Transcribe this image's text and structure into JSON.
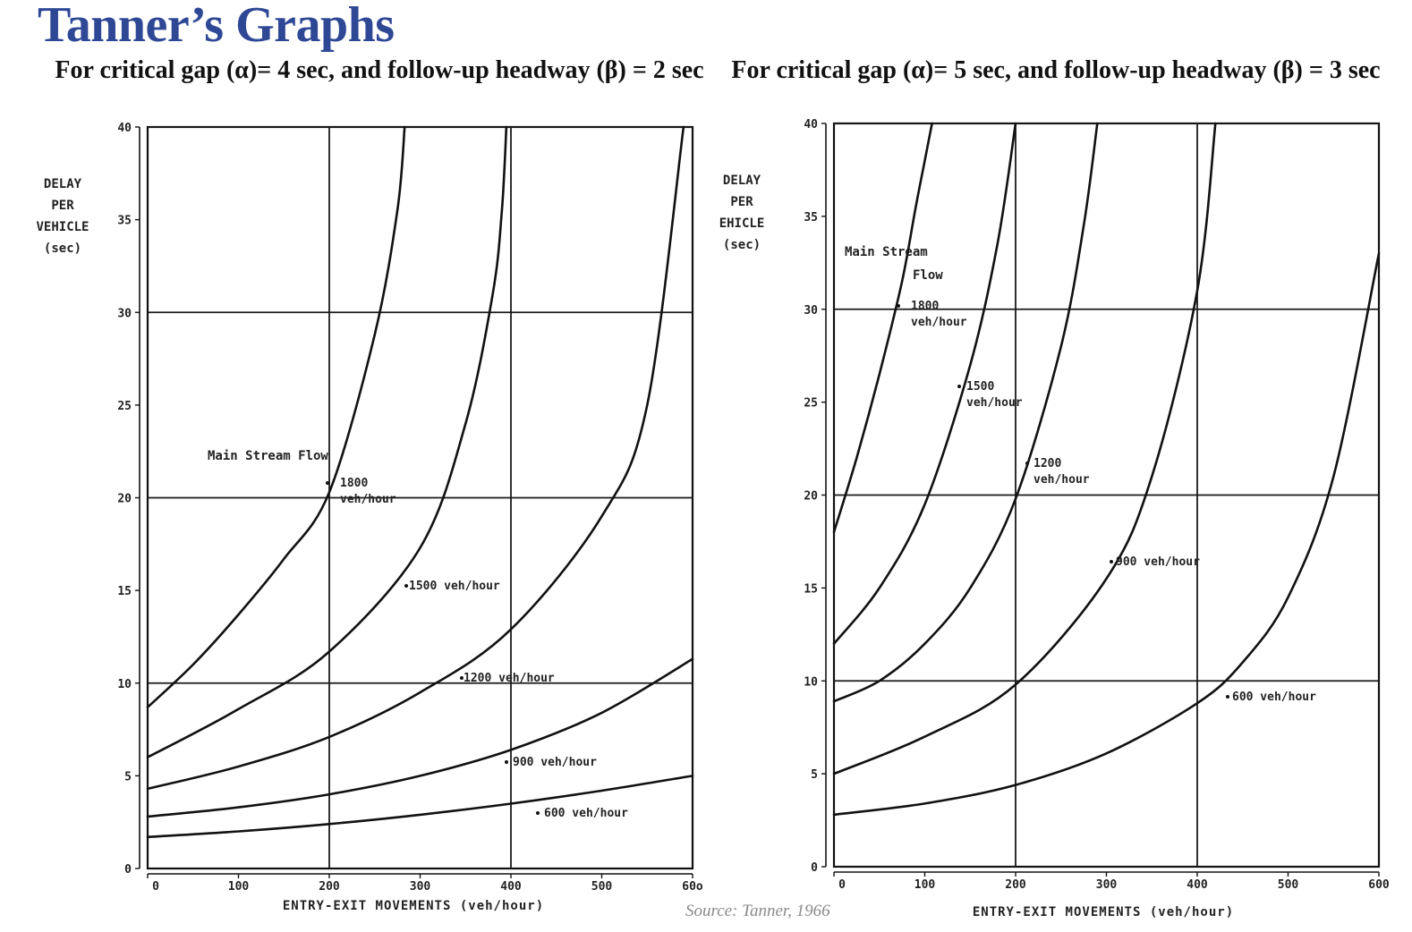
{
  "page": {
    "title": "Tanner’s Graphs",
    "source": "Source: Tanner, 1966"
  },
  "chart_data": [
    {
      "type": "line",
      "title": "For critical gap (α)= 4 sec, and follow-up headway (β) = 2 sec",
      "xlabel": "ENTRY-EXIT MOVEMENTS (veh/hour)",
      "ylabel": [
        "DELAY",
        "PER",
        "VEHICLE",
        "(sec)"
      ],
      "xlim": [
        0,
        600
      ],
      "ylim": [
        0,
        40
      ],
      "x_ticks": [
        0,
        100,
        200,
        300,
        400,
        500,
        600
      ],
      "x_tick_labels": [
        "0",
        "100",
        "200",
        "300",
        "400",
        "500",
        "60o"
      ],
      "y_ticks": [
        0,
        5,
        10,
        15,
        20,
        25,
        30,
        35,
        40
      ],
      "y_tick_labels": [
        "0",
        "5",
        "10",
        "15",
        "20",
        "25",
        "30",
        "35",
        "40"
      ],
      "grid_x": [
        200,
        400
      ],
      "grid_y": [
        10,
        20,
        30,
        40
      ],
      "series_heading": "Main Stream Flow",
      "series": [
        {
          "name": "1800 veh/hour",
          "label_lines": [
            "1800",
            "veh/hour"
          ],
          "x": [
            0,
            50,
            100,
            150,
            200,
            250,
            275,
            283
          ],
          "y": [
            8.7,
            11.0,
            13.7,
            16.7,
            20.3,
            28.8,
            35.5,
            40.0
          ]
        },
        {
          "name": "1500 veh/hour",
          "label_lines": [
            "1500 veh/hour"
          ],
          "x": [
            0,
            100,
            200,
            300,
            350,
            380,
            390,
            395
          ],
          "y": [
            6.0,
            8.6,
            11.7,
            17.3,
            24.0,
            31.0,
            35.5,
            40.0
          ]
        },
        {
          "name": "1200 veh/hour",
          "label_lines": [
            "1200 veh/hour"
          ],
          "x": [
            0,
            100,
            200,
            300,
            400,
            500,
            550,
            590
          ],
          "y": [
            4.3,
            5.5,
            7.1,
            9.5,
            12.9,
            19.0,
            25.0,
            40.0
          ]
        },
        {
          "name": "900 veh/hour",
          "label_lines": [
            "900 veh/hour"
          ],
          "x": [
            0,
            100,
            200,
            300,
            400,
            500,
            600
          ],
          "y": [
            2.8,
            3.3,
            4.0,
            5.0,
            6.4,
            8.4,
            11.3
          ]
        },
        {
          "name": "600 veh/hour",
          "label_lines": [
            "600 veh/hour"
          ],
          "x": [
            0,
            100,
            200,
            300,
            400,
            500,
            600
          ],
          "y": [
            1.7,
            2.0,
            2.4,
            2.9,
            3.5,
            4.2,
            5.0
          ]
        }
      ]
    },
    {
      "type": "line",
      "title": "For critical gap (α)= 5 sec, and follow-up headway (β) = 3 sec",
      "xlabel": "ENTRY-EXIT MOVEMENTS (veh/hour)",
      "ylabel": [
        "DELAY",
        "PER",
        "EHICLE",
        "(sec)"
      ],
      "xlim": [
        0,
        600
      ],
      "ylim": [
        0,
        40
      ],
      "x_ticks": [
        0,
        100,
        200,
        300,
        400,
        500,
        600
      ],
      "x_tick_labels": [
        "0",
        "100",
        "200",
        "300",
        "400",
        "500",
        "600"
      ],
      "y_ticks": [
        0,
        5,
        10,
        15,
        20,
        25,
        30,
        35,
        40
      ],
      "y_tick_labels": [
        "0",
        "5",
        "10",
        "15",
        "20",
        "25",
        "30",
        "35",
        "40"
      ],
      "grid_x": [
        200,
        400
      ],
      "grid_y": [
        10,
        20,
        30,
        40
      ],
      "series_heading_lines": [
        "Main Stream",
        "Flow"
      ],
      "series": [
        {
          "name": "1800 veh/hour",
          "label_lines": [
            "1800",
            "veh/hour"
          ],
          "x": [
            0,
            25,
            50,
            75,
            90,
            100,
            108
          ],
          "y": [
            18.0,
            22.0,
            26.5,
            31.5,
            35.5,
            38.0,
            40.0
          ]
        },
        {
          "name": "1500 veh/hour",
          "label_lines": [
            "1500",
            "veh/hour"
          ],
          "x": [
            0,
            50,
            100,
            150,
            180,
            200
          ],
          "y": [
            12.0,
            15.0,
            19.5,
            27.0,
            33.5,
            40.0
          ]
        },
        {
          "name": "1200 veh/hour",
          "label_lines": [
            "1200",
            "veh/hour"
          ],
          "x": [
            0,
            50,
            100,
            150,
            200,
            250,
            275,
            290
          ],
          "y": [
            8.9,
            10.0,
            12.0,
            15.0,
            19.8,
            28.0,
            34.5,
            40.0
          ]
        },
        {
          "name": "900 veh/hour",
          "label_lines": [
            "900 veh/hour"
          ],
          "x": [
            0,
            100,
            200,
            300,
            350,
            400,
            420
          ],
          "y": [
            5.0,
            7.0,
            9.8,
            15.5,
            21.0,
            31.0,
            40.0
          ]
        },
        {
          "name": "600 veh/hour",
          "label_lines": [
            "600 veh/hour"
          ],
          "x": [
            0,
            100,
            200,
            300,
            400,
            450,
            500,
            550,
            600
          ],
          "y": [
            2.8,
            3.4,
            4.4,
            6.1,
            8.8,
            11.0,
            14.5,
            21.0,
            33.0
          ]
        }
      ]
    }
  ]
}
